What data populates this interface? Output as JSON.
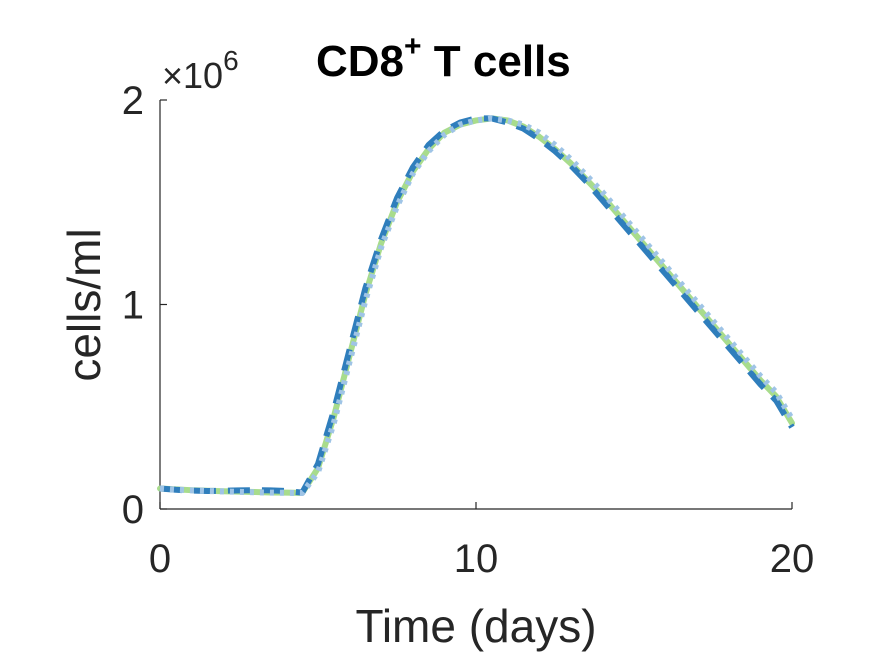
{
  "chart_data": {
    "type": "line",
    "title": "CD8",
    "title_superscript": "+",
    "title_suffix": " T cells",
    "xlabel": "Time (days)",
    "ylabel": "cells/ml",
    "y_multiplier_base": "×10",
    "y_multiplier_exponent": "6",
    "xlim": [
      0,
      20
    ],
    "ylim": [
      0,
      2
    ],
    "xticks": [
      0,
      10,
      20
    ],
    "xtick_labels": [
      "0",
      "10",
      "20"
    ],
    "yticks": [
      0,
      1,
      2
    ],
    "ytick_labels": [
      "0",
      "1",
      "2"
    ],
    "grid": false,
    "legend": "none",
    "x": [
      0,
      0.5,
      1,
      1.5,
      2,
      2.5,
      3,
      3.5,
      4,
      4.5,
      5,
      5.5,
      6,
      6.5,
      7,
      7.5,
      8,
      8.5,
      9,
      9.5,
      10,
      10.5,
      11,
      11.5,
      12,
      12.5,
      13,
      13.5,
      14,
      14.5,
      15,
      15.5,
      16,
      16.5,
      17,
      17.5,
      18,
      18.5,
      19,
      19.5,
      20
    ],
    "series": [
      {
        "style": "solid",
        "color": "#a8dc8c",
        "values": [
          0.1,
          0.096,
          0.092,
          0.089,
          0.087,
          0.085,
          0.083,
          0.081,
          0.08,
          0.079,
          0.2,
          0.45,
          0.75,
          1.05,
          1.3,
          1.5,
          1.65,
          1.76,
          1.84,
          1.88,
          1.9,
          1.91,
          1.9,
          1.87,
          1.82,
          1.76,
          1.69,
          1.61,
          1.53,
          1.44,
          1.35,
          1.26,
          1.17,
          1.08,
          0.99,
          0.9,
          0.81,
          0.72,
          0.63,
          0.55,
          0.42
        ]
      },
      {
        "style": "dashed",
        "color": "#2f7ebc",
        "values": [
          0.1,
          0.094,
          0.09,
          0.088,
          0.089,
          0.091,
          0.092,
          0.091,
          0.088,
          0.08,
          0.22,
          0.48,
          0.78,
          1.08,
          1.32,
          1.52,
          1.67,
          1.78,
          1.85,
          1.89,
          1.91,
          1.91,
          1.89,
          1.86,
          1.81,
          1.75,
          1.68,
          1.6,
          1.51,
          1.42,
          1.33,
          1.24,
          1.15,
          1.06,
          0.97,
          0.88,
          0.79,
          0.7,
          0.61,
          0.53,
          0.4
        ]
      },
      {
        "style": "dotted",
        "color": "#9fc4e6",
        "values": [
          0.1,
          0.095,
          0.091,
          0.088,
          0.086,
          0.084,
          0.082,
          0.08,
          0.079,
          0.078,
          0.18,
          0.42,
          0.72,
          1.02,
          1.28,
          1.48,
          1.64,
          1.75,
          1.83,
          1.88,
          1.9,
          1.91,
          1.9,
          1.88,
          1.84,
          1.78,
          1.71,
          1.63,
          1.55,
          1.46,
          1.37,
          1.28,
          1.19,
          1.1,
          1.01,
          0.92,
          0.83,
          0.74,
          0.65,
          0.57,
          0.44
        ]
      }
    ]
  }
}
